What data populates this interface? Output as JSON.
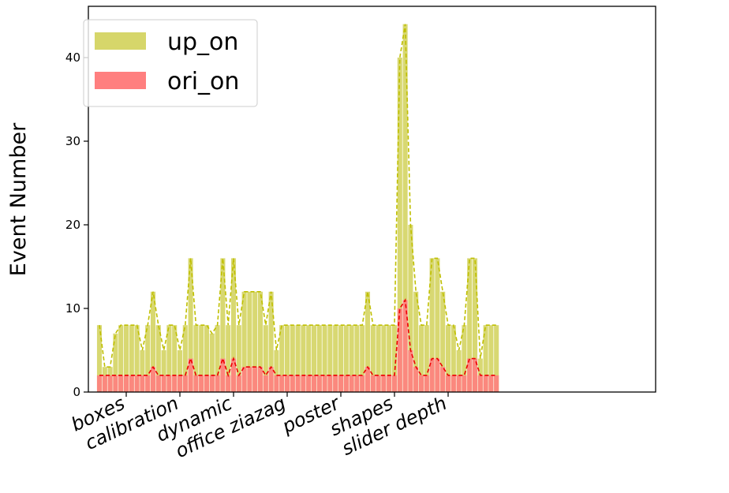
{
  "chart_data": {
    "type": "bar",
    "ylabel": "Event Number",
    "xlabel": "",
    "ylim": [
      0,
      45
    ],
    "yticks": [
      0,
      10,
      20,
      30,
      40
    ],
    "grid": false,
    "legend_position": "top-left",
    "overlay": true,
    "trend_lines": "dashed",
    "category_labels": [
      {
        "label": "boxes",
        "index": 5
      },
      {
        "label": "calibration",
        "index": 15
      },
      {
        "label": "dynamic",
        "index": 25
      },
      {
        "label": "office ziazag",
        "index": 35
      },
      {
        "label": "poster",
        "index": 45
      },
      {
        "label": "shapes",
        "index": 55
      },
      {
        "label": "slider depth",
        "index": 65
      }
    ],
    "series": [
      {
        "name": "up_on",
        "color": "#d6d66a",
        "line_color": "#bfbf00",
        "values": [
          8,
          3,
          3,
          7,
          8,
          8,
          8,
          8,
          5,
          8,
          12,
          8,
          5,
          8,
          8,
          5,
          8,
          16,
          8,
          8,
          8,
          7,
          8,
          16,
          8,
          16,
          8,
          12,
          12,
          12,
          12,
          8,
          12,
          5,
          8,
          8,
          8,
          8,
          8,
          8,
          8,
          8,
          8,
          8,
          8,
          8,
          8,
          8,
          8,
          8,
          12,
          8,
          8,
          8,
          8,
          8,
          40,
          44,
          20,
          12,
          8,
          8,
          16,
          16,
          12,
          8,
          8,
          5,
          8,
          16,
          16,
          4,
          8,
          8,
          8
        ]
      },
      {
        "name": "ori_on",
        "color": "#ff7f7f",
        "line_color": "#ee0000",
        "values": [
          2,
          2,
          2,
          2,
          2,
          2,
          2,
          2,
          2,
          2,
          3,
          2,
          2,
          2,
          2,
          2,
          2,
          4,
          2,
          2,
          2,
          2,
          2,
          4,
          2,
          4,
          2,
          3,
          3,
          3,
          3,
          2,
          3,
          2,
          2,
          2,
          2,
          2,
          2,
          2,
          2,
          2,
          2,
          2,
          2,
          2,
          2,
          2,
          2,
          2,
          3,
          2,
          2,
          2,
          2,
          2,
          10,
          11,
          5,
          3,
          2,
          2,
          4,
          4,
          3,
          2,
          2,
          2,
          2,
          4,
          4,
          2,
          2,
          2,
          2
        ]
      }
    ]
  }
}
